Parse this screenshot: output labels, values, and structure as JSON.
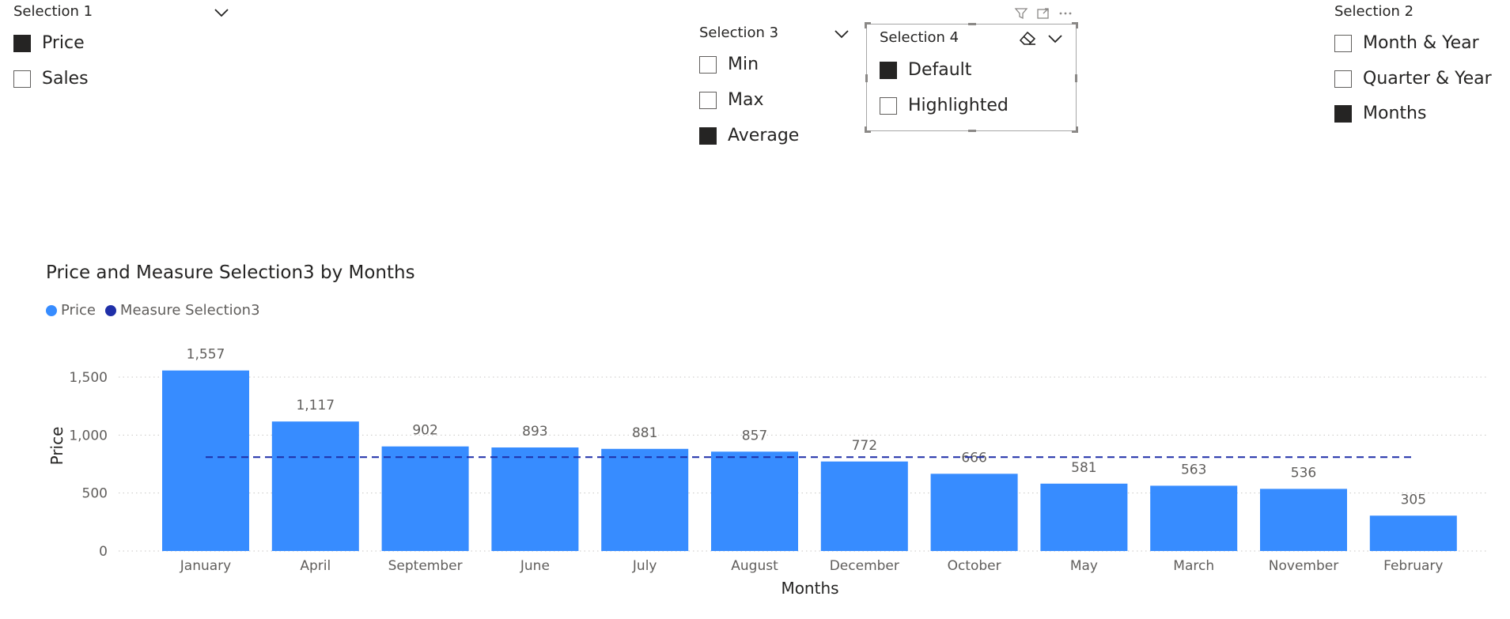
{
  "colors": {
    "price": "#378cff",
    "measure": "#1f2fa8",
    "checkbox_fill": "#252423",
    "text": "#252423",
    "axis_text": "#605e5c",
    "grid": "#c8c6c4"
  },
  "slicers": {
    "s1": {
      "title": "Selection 1",
      "options": [
        {
          "label": "Price",
          "checked": true
        },
        {
          "label": "Sales",
          "checked": false
        }
      ]
    },
    "s2": {
      "title": "Selection 2",
      "options": [
        {
          "label": "Month & Year",
          "checked": false
        },
        {
          "label": "Quarter & Year",
          "checked": false
        },
        {
          "label": "Months",
          "checked": true
        }
      ]
    },
    "s3": {
      "title": "Selection 3",
      "options": [
        {
          "label": "Min",
          "checked": false
        },
        {
          "label": "Max",
          "checked": false
        },
        {
          "label": "Average",
          "checked": true
        }
      ]
    },
    "s4": {
      "title": "Selection 4",
      "options": [
        {
          "label": "Default",
          "checked": true
        },
        {
          "label": "Highlighted",
          "checked": false
        }
      ]
    }
  },
  "visual_header_icons": [
    "filter-icon",
    "focus-mode-icon",
    "more-options-icon"
  ],
  "chart_data": {
    "type": "bar",
    "title": "Price and Measure Selection3 by Months",
    "xlabel": "Months",
    "ylabel": "Price",
    "categories": [
      "January",
      "April",
      "September",
      "June",
      "July",
      "August",
      "December",
      "October",
      "May",
      "March",
      "November",
      "February"
    ],
    "series": [
      {
        "name": "Price",
        "type": "bar",
        "values": [
          1557,
          1117,
          902,
          893,
          881,
          857,
          772,
          666,
          581,
          563,
          536,
          305
        ],
        "labels": [
          "1,557",
          "1,117",
          "902",
          "893",
          "881",
          "857",
          "772",
          "666",
          "581",
          "563",
          "536",
          "305"
        ]
      },
      {
        "name": "Measure Selection3",
        "type": "line",
        "style": "dashed",
        "values": [
          810,
          810,
          810,
          810,
          810,
          810,
          810,
          810,
          810,
          810,
          810,
          810
        ]
      }
    ],
    "ylim": [
      0,
      1650
    ],
    "yticks": [
      0,
      500,
      1000,
      1500
    ],
    "ytick_labels": [
      "0",
      "500",
      "1,000",
      "1,500"
    ],
    "grid": true,
    "legend_position": "top-left"
  }
}
